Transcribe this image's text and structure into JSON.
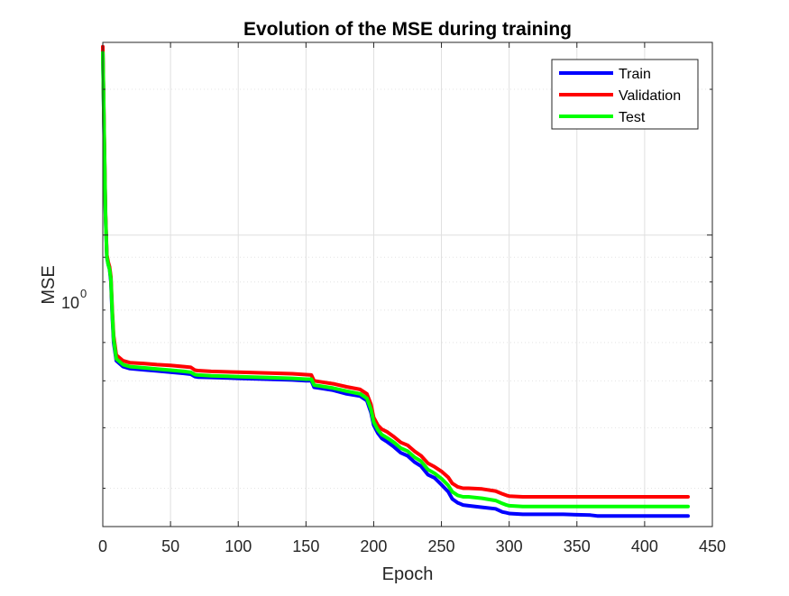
{
  "chart_data": {
    "type": "line",
    "title": "Evolution of the MSE during training",
    "xlabel": "Epoch",
    "ylabel": "MSE",
    "xlim": [
      0,
      450
    ],
    "ylim": [
      0.25,
      2.5
    ],
    "yscale": "log",
    "grid": true,
    "legend_position": "top-right",
    "x_ticks": [
      "0",
      "50",
      "100",
      "150",
      "200",
      "250",
      "300",
      "350",
      "400",
      "450"
    ],
    "y_tick_label_base": "10",
    "y_tick_label_exp": "0",
    "series": [
      {
        "name": "Train",
        "color": "#0000ff",
        "x": [
          0,
          1,
          2,
          3,
          4,
          5,
          6,
          7,
          8,
          10,
          15,
          20,
          30,
          40,
          50,
          60,
          65,
          68,
          70,
          80,
          100,
          120,
          140,
          150,
          154,
          156,
          160,
          170,
          180,
          190,
          195,
          198,
          200,
          203,
          206,
          210,
          215,
          220,
          225,
          230,
          235,
          240,
          245,
          250,
          255,
          258,
          262,
          266,
          270,
          280,
          290,
          295,
          298,
          300,
          310,
          320,
          340,
          360,
          365,
          370,
          380,
          400,
          420,
          432
        ],
        "y": [
          2.4,
          1.6,
          1.1,
          0.9,
          0.87,
          0.85,
          0.8,
          0.68,
          0.6,
          0.55,
          0.535,
          0.53,
          0.527,
          0.524,
          0.521,
          0.518,
          0.516,
          0.51,
          0.509,
          0.508,
          0.506,
          0.504,
          0.502,
          0.5,
          0.5,
          0.485,
          0.483,
          0.478,
          0.47,
          0.465,
          0.455,
          0.43,
          0.405,
          0.39,
          0.38,
          0.374,
          0.365,
          0.355,
          0.35,
          0.34,
          0.333,
          0.32,
          0.315,
          0.305,
          0.295,
          0.285,
          0.28,
          0.277,
          0.276,
          0.274,
          0.272,
          0.268,
          0.267,
          0.266,
          0.265,
          0.265,
          0.265,
          0.264,
          0.263,
          0.263,
          0.263,
          0.263,
          0.263,
          0.263
        ]
      },
      {
        "name": "Validation",
        "color": "#ff0000",
        "x": [
          0,
          1,
          2,
          3,
          4,
          5,
          6,
          7,
          8,
          10,
          15,
          20,
          30,
          40,
          50,
          60,
          65,
          68,
          70,
          80,
          100,
          120,
          140,
          150,
          154,
          156,
          160,
          170,
          180,
          190,
          195,
          198,
          200,
          203,
          206,
          210,
          215,
          220,
          225,
          230,
          235,
          240,
          245,
          250,
          255,
          258,
          262,
          266,
          270,
          280,
          290,
          295,
          298,
          300,
          310,
          320,
          340,
          360,
          365,
          370,
          380,
          400,
          420,
          432
        ],
        "y": [
          2.45,
          1.65,
          1.12,
          0.91,
          0.88,
          0.86,
          0.82,
          0.7,
          0.62,
          0.565,
          0.55,
          0.545,
          0.543,
          0.54,
          0.538,
          0.535,
          0.533,
          0.526,
          0.525,
          0.523,
          0.521,
          0.519,
          0.517,
          0.515,
          0.514,
          0.5,
          0.498,
          0.493,
          0.486,
          0.48,
          0.47,
          0.447,
          0.42,
          0.405,
          0.397,
          0.392,
          0.383,
          0.373,
          0.368,
          0.358,
          0.35,
          0.338,
          0.332,
          0.325,
          0.316,
          0.307,
          0.302,
          0.3,
          0.3,
          0.299,
          0.296,
          0.292,
          0.29,
          0.289,
          0.288,
          0.288,
          0.288,
          0.288,
          0.288,
          0.288,
          0.288,
          0.288,
          0.288,
          0.288
        ]
      },
      {
        "name": "Test",
        "color": "#00ff00",
        "x": [
          0,
          1,
          2,
          3,
          4,
          5,
          6,
          7,
          8,
          10,
          15,
          20,
          30,
          40,
          50,
          60,
          65,
          68,
          70,
          80,
          100,
          120,
          140,
          150,
          154,
          156,
          160,
          170,
          180,
          190,
          195,
          198,
          200,
          203,
          206,
          210,
          215,
          220,
          225,
          230,
          235,
          240,
          245,
          250,
          255,
          258,
          262,
          266,
          270,
          280,
          290,
          295,
          298,
          300,
          310,
          320,
          340,
          360,
          365,
          370,
          380,
          400,
          420,
          432
        ],
        "y": [
          2.38,
          1.62,
          1.1,
          0.9,
          0.87,
          0.85,
          0.81,
          0.69,
          0.61,
          0.555,
          0.54,
          0.535,
          0.532,
          0.529,
          0.526,
          0.523,
          0.521,
          0.515,
          0.514,
          0.512,
          0.51,
          0.508,
          0.506,
          0.504,
          0.504,
          0.49,
          0.488,
          0.483,
          0.476,
          0.47,
          0.46,
          0.437,
          0.411,
          0.396,
          0.387,
          0.381,
          0.373,
          0.363,
          0.358,
          0.348,
          0.341,
          0.328,
          0.322,
          0.314,
          0.304,
          0.295,
          0.29,
          0.288,
          0.288,
          0.286,
          0.283,
          0.279,
          0.277,
          0.276,
          0.275,
          0.275,
          0.275,
          0.275,
          0.275,
          0.275,
          0.275,
          0.275,
          0.275,
          0.275
        ]
      }
    ]
  }
}
